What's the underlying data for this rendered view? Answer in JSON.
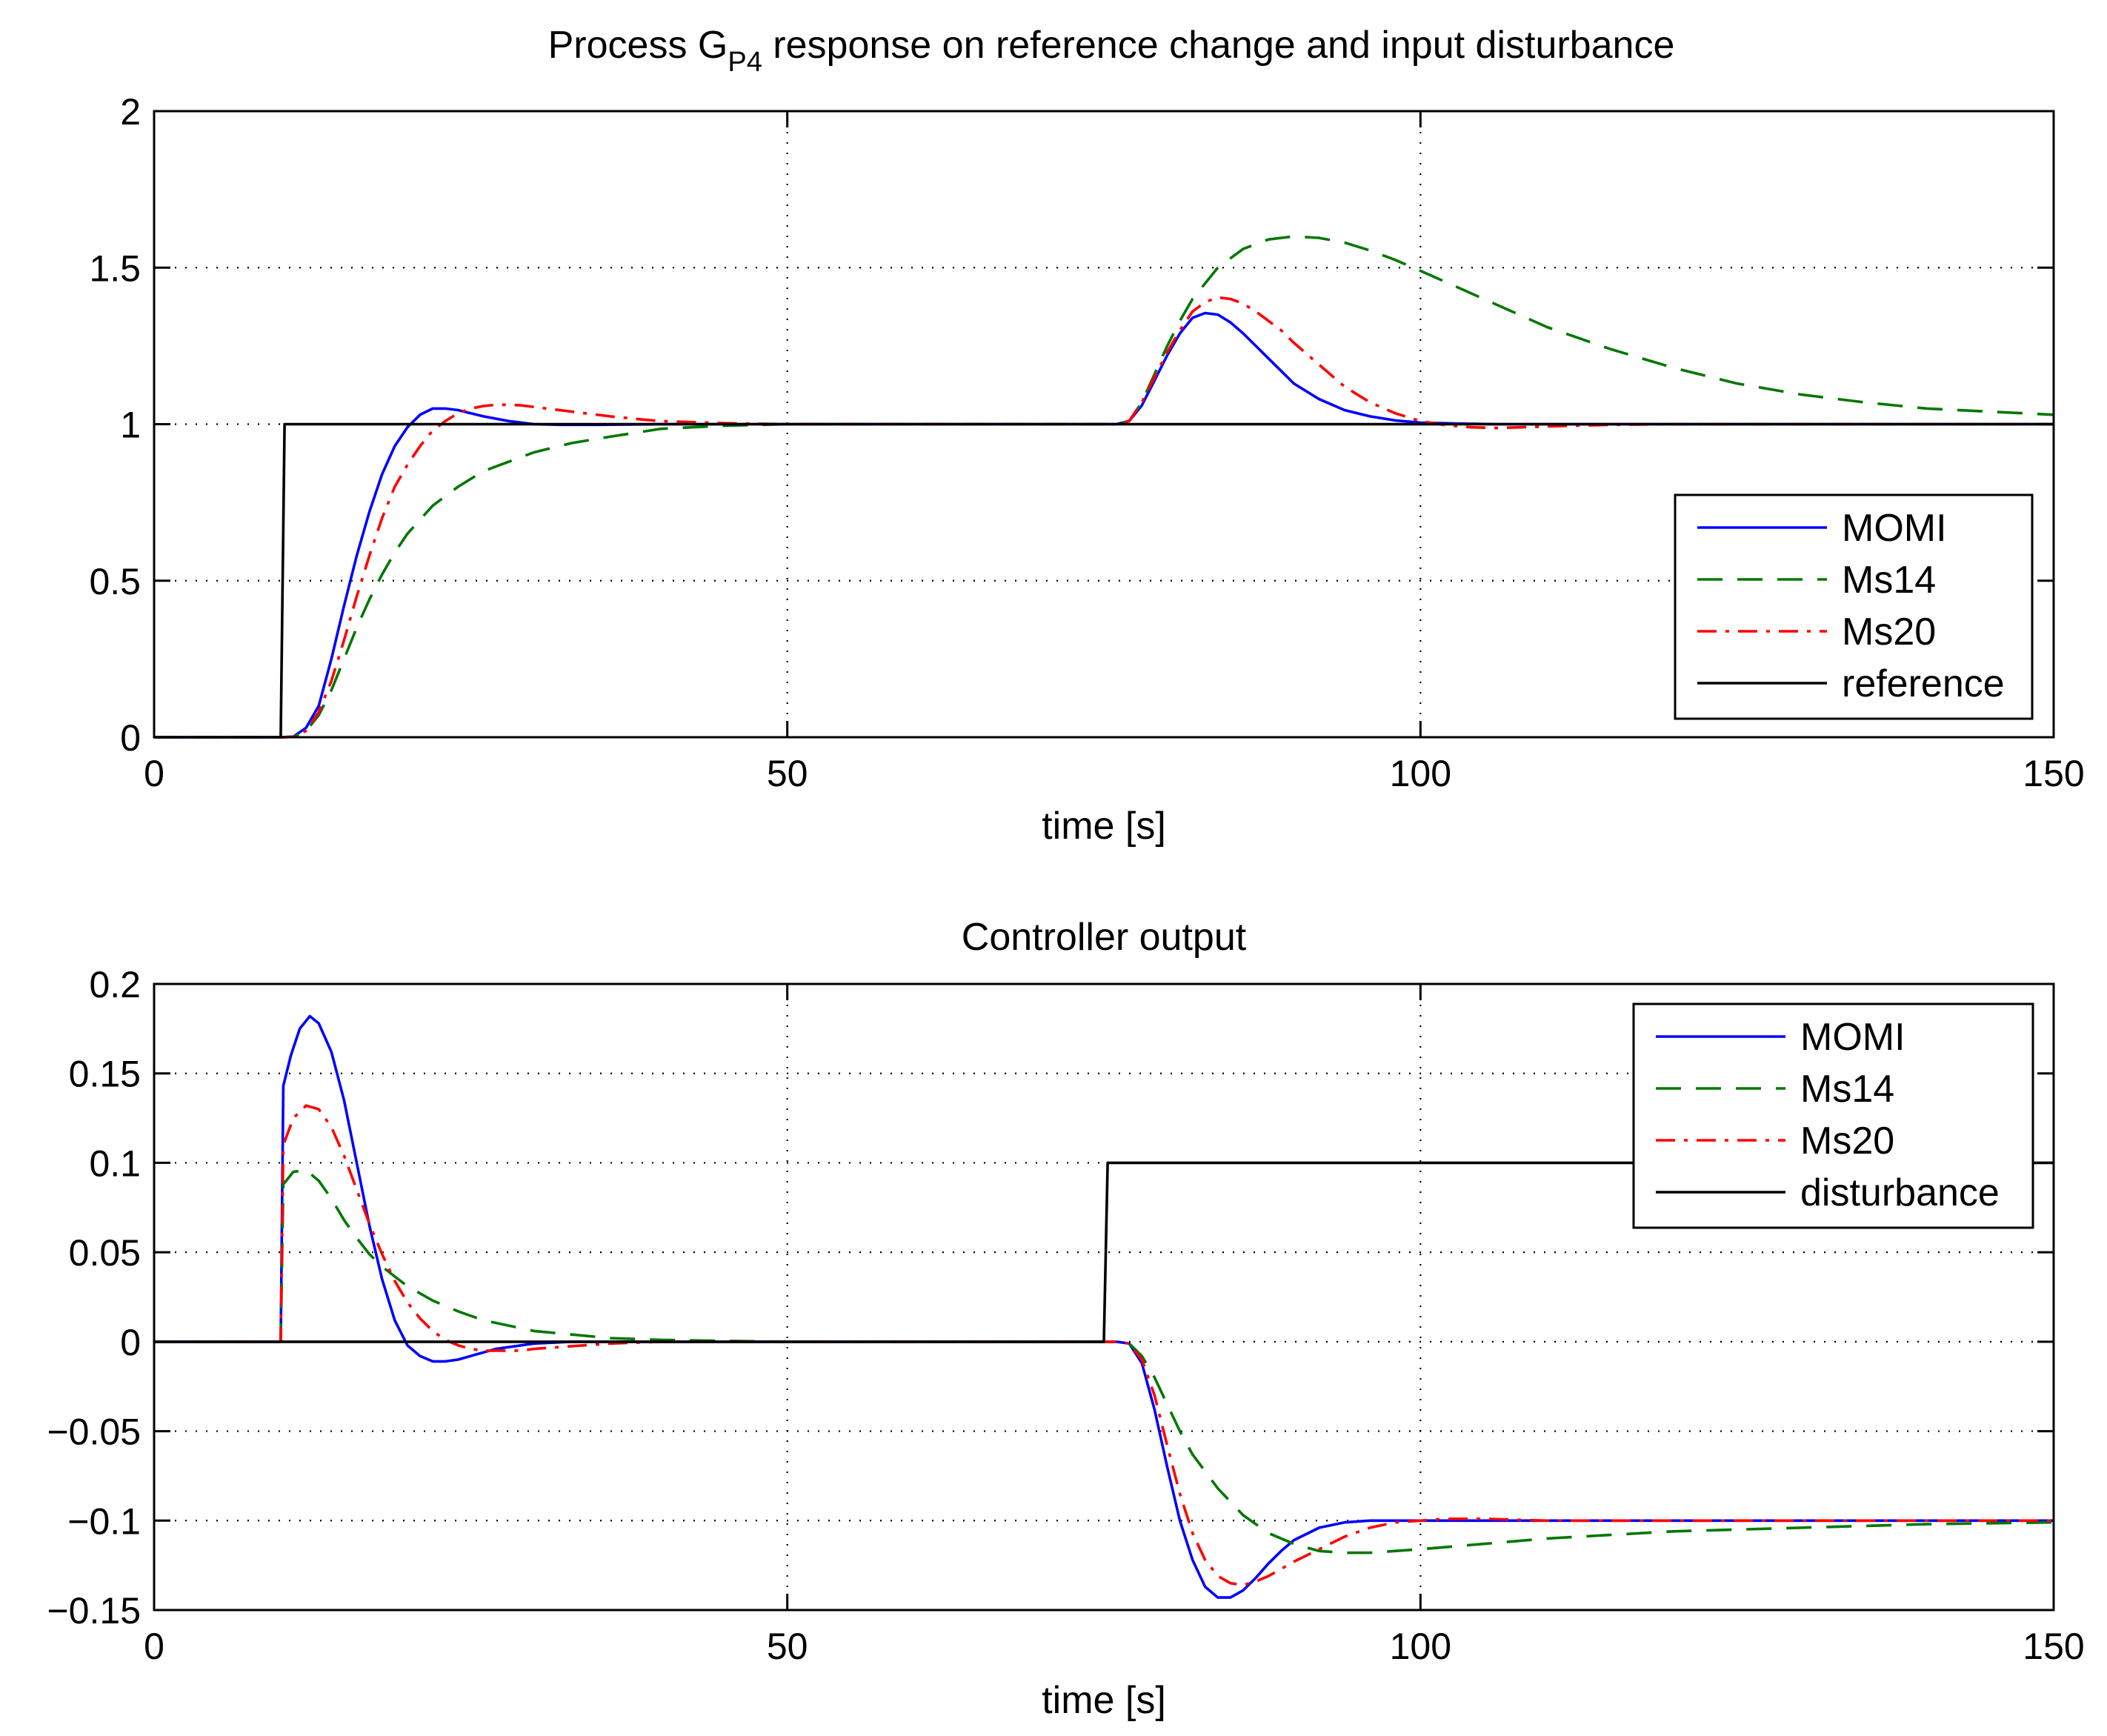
{
  "chart_data": [
    {
      "type": "line",
      "title": "Process G",
      "title_subscript": "P4",
      "title_rest": " response on reference change and input disturbance",
      "xlabel": "time [s]",
      "ylabel": "",
      "xlim": [
        0,
        150
      ],
      "ylim": [
        0,
        2
      ],
      "xticks": [
        0,
        50,
        100,
        150
      ],
      "yticks": [
        0,
        0.5,
        1,
        1.5,
        2
      ],
      "xtick_labels": [
        "0",
        "50",
        "100",
        "150"
      ],
      "ytick_labels": [
        "0",
        "0.5",
        "1",
        "1.5",
        "2"
      ],
      "grid": true,
      "legend_position": "bottom-right",
      "legend": [
        "MOMI",
        "Ms14",
        "Ms20",
        "reference"
      ],
      "series": [
        {
          "name": "MOMI",
          "color": "#0000ff",
          "style": "solid",
          "x": [
            0,
            10,
            11,
            12,
            13,
            14,
            15,
            16,
            17,
            18,
            19,
            20,
            21,
            22,
            23,
            24,
            25,
            26,
            28,
            30,
            32,
            35,
            40,
            50,
            60,
            70,
            76,
            77,
            78,
            79,
            80,
            81,
            82,
            83,
            84,
            85,
            86,
            87,
            88,
            89,
            90,
            92,
            94,
            96,
            98,
            100,
            103,
            106,
            110,
            120,
            130,
            140,
            150
          ],
          "y": [
            0,
            0,
            0.002,
            0.03,
            0.1,
            0.25,
            0.42,
            0.58,
            0.72,
            0.84,
            0.93,
            0.99,
            1.03,
            1.05,
            1.05,
            1.045,
            1.035,
            1.025,
            1.01,
            1.0,
            0.998,
            0.998,
            1.0,
            1.0,
            1.0,
            1.0,
            1.0,
            1.01,
            1.06,
            1.14,
            1.22,
            1.29,
            1.34,
            1.355,
            1.35,
            1.325,
            1.29,
            1.25,
            1.21,
            1.17,
            1.13,
            1.08,
            1.045,
            1.025,
            1.012,
            1.005,
            1.002,
            1.0,
            1.0,
            1.0,
            1.0,
            1.0,
            1.0
          ]
        },
        {
          "name": "Ms14",
          "color": "#007700",
          "style": "dashed",
          "x": [
            0,
            10,
            11,
            12,
            13,
            14,
            15,
            16,
            17,
            18,
            19,
            20,
            22,
            24,
            26,
            28,
            30,
            33,
            36,
            40,
            45,
            50,
            60,
            70,
            76,
            77,
            78,
            79,
            80,
            81,
            82,
            84,
            86,
            88,
            90,
            92,
            94,
            96,
            98,
            100,
            105,
            110,
            115,
            120,
            125,
            130,
            135,
            140,
            145,
            150
          ],
          "y": [
            0,
            0,
            0.001,
            0.02,
            0.07,
            0.15,
            0.25,
            0.35,
            0.44,
            0.52,
            0.59,
            0.65,
            0.74,
            0.8,
            0.85,
            0.88,
            0.91,
            0.94,
            0.96,
            0.985,
            0.995,
            1.0,
            1.0,
            1.0,
            1.0,
            1.01,
            1.07,
            1.16,
            1.25,
            1.33,
            1.4,
            1.5,
            1.56,
            1.59,
            1.6,
            1.595,
            1.58,
            1.555,
            1.525,
            1.49,
            1.4,
            1.31,
            1.24,
            1.18,
            1.13,
            1.095,
            1.07,
            1.05,
            1.04,
            1.03
          ]
        },
        {
          "name": "Ms20",
          "color": "#ff0000",
          "style": "dashdot",
          "x": [
            0,
            10,
            11,
            12,
            13,
            14,
            15,
            16,
            17,
            18,
            19,
            20,
            21,
            22,
            23,
            24,
            25,
            26,
            27,
            28,
            29,
            30,
            32,
            34,
            36,
            38,
            40,
            45,
            50,
            60,
            70,
            76,
            77,
            78,
            79,
            80,
            81,
            82,
            83,
            84,
            85,
            86,
            87,
            88,
            89,
            90,
            92,
            94,
            96,
            98,
            100,
            102,
            104,
            106,
            108,
            110,
            115,
            120,
            130,
            140,
            150
          ],
          "y": [
            0,
            0,
            0.001,
            0.02,
            0.08,
            0.18,
            0.31,
            0.45,
            0.58,
            0.7,
            0.8,
            0.87,
            0.93,
            0.98,
            1.01,
            1.035,
            1.05,
            1.058,
            1.062,
            1.062,
            1.06,
            1.055,
            1.045,
            1.035,
            1.025,
            1.017,
            1.01,
            1.003,
            1.0,
            1.0,
            1.0,
            1.0,
            1.01,
            1.07,
            1.15,
            1.23,
            1.3,
            1.36,
            1.39,
            1.405,
            1.4,
            1.385,
            1.36,
            1.33,
            1.3,
            1.26,
            1.19,
            1.12,
            1.07,
            1.035,
            1.01,
            0.997,
            0.99,
            0.988,
            0.99,
            0.993,
            0.998,
            1.0,
            1.0,
            1.0,
            1.0
          ]
        },
        {
          "name": "reference",
          "color": "#000000",
          "style": "solid",
          "x": [
            0,
            10,
            10.3,
            150
          ],
          "y": [
            0,
            0,
            1,
            1
          ]
        }
      ]
    },
    {
      "type": "line",
      "title": "Controller output",
      "xlabel": "time [s]",
      "ylabel": "",
      "xlim": [
        0,
        150
      ],
      "ylim": [
        -0.15,
        0.2
      ],
      "xticks": [
        0,
        50,
        100,
        150
      ],
      "yticks": [
        -0.15,
        -0.1,
        -0.05,
        0,
        0.05,
        0.1,
        0.15,
        0.2
      ],
      "xtick_labels": [
        "0",
        "50",
        "100",
        "150"
      ],
      "ytick_labels": [
        "−0.15",
        "−0.1",
        "−0.05",
        "0",
        "0.05",
        "0.1",
        "0.15",
        "0.2"
      ],
      "grid": true,
      "legend_position": "top-right",
      "legend": [
        "MOMI",
        "Ms14",
        "Ms20",
        "disturbance"
      ],
      "series": [
        {
          "name": "MOMI",
          "color": "#0000ff",
          "style": "solid",
          "x": [
            0,
            10,
            10.2,
            10.8,
            11.5,
            12.3,
            13,
            14,
            15,
            16,
            17,
            18,
            19,
            20,
            21,
            22,
            23,
            24,
            25,
            26,
            27,
            28,
            30,
            33,
            36,
            40,
            50,
            60,
            70,
            75,
            76,
            77,
            78,
            79,
            80,
            81,
            82,
            83,
            84,
            85,
            86,
            87,
            88,
            89,
            90,
            92,
            94,
            96,
            98,
            100,
            105,
            110,
            120,
            130,
            140,
            150
          ],
          "y": [
            0,
            0,
            0.143,
            0.16,
            0.175,
            0.182,
            0.178,
            0.162,
            0.135,
            0.1,
            0.065,
            0.035,
            0.012,
            -0.002,
            -0.008,
            -0.011,
            -0.011,
            -0.01,
            -0.008,
            -0.006,
            -0.004,
            -0.003,
            -0.001,
            0,
            0,
            0,
            0,
            0,
            0,
            0,
            0,
            -0.001,
            -0.012,
            -0.038,
            -0.07,
            -0.1,
            -0.122,
            -0.137,
            -0.143,
            -0.143,
            -0.139,
            -0.132,
            -0.124,
            -0.117,
            -0.111,
            -0.104,
            -0.101,
            -0.1,
            -0.1,
            -0.1,
            -0.1,
            -0.1,
            -0.1,
            -0.1,
            -0.1,
            -0.1
          ]
        },
        {
          "name": "Ms14",
          "color": "#007700",
          "style": "dashed",
          "x": [
            0,
            10,
            10.2,
            11,
            12,
            13,
            14,
            15,
            16,
            17,
            18,
            20,
            22,
            24,
            26,
            28,
            30,
            33,
            36,
            40,
            45,
            50,
            55,
            60,
            70,
            75,
            76,
            77,
            78,
            79,
            80,
            81,
            82,
            84,
            86,
            88,
            90,
            92,
            94,
            96,
            98,
            100,
            105,
            110,
            115,
            120,
            130,
            140,
            150
          ],
          "y": [
            0,
            0,
            0.088,
            0.095,
            0.096,
            0.09,
            0.08,
            0.068,
            0.058,
            0.049,
            0.042,
            0.031,
            0.023,
            0.017,
            0.012,
            0.009,
            0.006,
            0.004,
            0.002,
            0.001,
            0.0005,
            0,
            0,
            0,
            0,
            0,
            0,
            -0.001,
            -0.008,
            -0.02,
            -0.035,
            -0.05,
            -0.063,
            -0.082,
            -0.097,
            -0.107,
            -0.113,
            -0.117,
            -0.118,
            -0.118,
            -0.117,
            -0.116,
            -0.113,
            -0.11,
            -0.108,
            -0.106,
            -0.104,
            -0.102,
            -0.101
          ]
        },
        {
          "name": "Ms20",
          "color": "#ff0000",
          "style": "dashdot",
          "x": [
            0,
            10,
            10.2,
            11,
            12,
            13,
            14,
            15,
            16,
            17,
            18,
            19,
            20,
            21,
            22,
            23,
            24,
            25,
            26,
            27,
            28,
            29,
            30,
            32,
            34,
            36,
            38,
            40,
            45,
            50,
            60,
            70,
            75,
            76,
            77,
            78,
            79,
            80,
            81,
            82,
            83,
            84,
            85,
            86,
            87,
            88,
            89,
            90,
            92,
            94,
            96,
            98,
            100,
            102,
            105,
            110,
            120,
            130,
            140,
            150
          ],
          "y": [
            0,
            0,
            0.11,
            0.125,
            0.132,
            0.13,
            0.12,
            0.104,
            0.085,
            0.066,
            0.049,
            0.034,
            0.022,
            0.013,
            0.006,
            0.001,
            -0.002,
            -0.004,
            -0.005,
            -0.005,
            -0.005,
            -0.005,
            -0.004,
            -0.003,
            -0.002,
            -0.001,
            -0.0005,
            0,
            0,
            0,
            0,
            0,
            0,
            0,
            -0.001,
            -0.01,
            -0.03,
            -0.058,
            -0.085,
            -0.107,
            -0.122,
            -0.131,
            -0.135,
            -0.136,
            -0.134,
            -0.131,
            -0.127,
            -0.123,
            -0.116,
            -0.109,
            -0.104,
            -0.101,
            -0.1,
            -0.099,
            -0.099,
            -0.1,
            -0.1,
            -0.1,
            -0.1,
            -0.1
          ]
        },
        {
          "name": "disturbance",
          "color": "#000000",
          "style": "solid",
          "x": [
            0,
            75,
            75.3,
            150
          ],
          "y": [
            0,
            0,
            0.1,
            0.1
          ]
        }
      ]
    }
  ]
}
